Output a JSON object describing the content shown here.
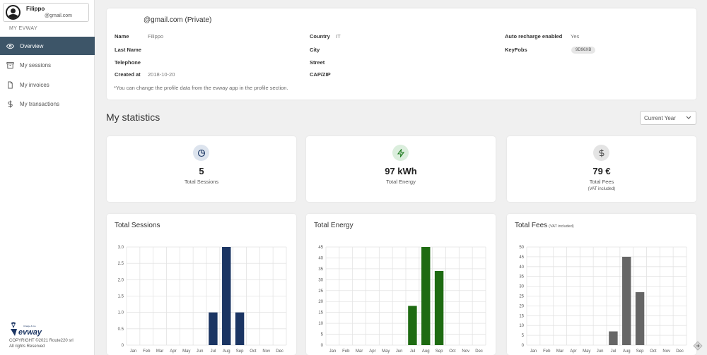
{
  "sidebar": {
    "user_name": "Filippo",
    "user_email": "@gmail.com",
    "section_label": "MY EVWAY",
    "items": [
      {
        "label": "Overview",
        "icon": "eye-icon"
      },
      {
        "label": "My sessions",
        "icon": "archive-icon"
      },
      {
        "label": "My invoices",
        "icon": "document-icon"
      },
      {
        "label": "My transactions",
        "icon": "dollar-icon"
      }
    ],
    "logo_text": "evway",
    "logo_tagline": "Charge & Go",
    "copyright_line1": "COPYRIGHT ©2021 Route220 srl",
    "copyright_line2": "All rights Reserved"
  },
  "profile": {
    "title": "@gmail.com (Private)",
    "fields_left": [
      {
        "label": "Name",
        "value": "Filippo"
      },
      {
        "label": "Last Name",
        "value": ""
      },
      {
        "label": "Telephone",
        "value": ""
      },
      {
        "label": "Created at",
        "value": "2018-10-20"
      }
    ],
    "fields_mid": [
      {
        "label": "Country",
        "value": "IT"
      },
      {
        "label": "City",
        "value": ""
      },
      {
        "label": "Street",
        "value": ""
      },
      {
        "label": "CAP/ZIP",
        "value": ""
      }
    ],
    "fields_right": [
      {
        "label": "Auto recharge enabled",
        "value": "Yes"
      },
      {
        "label": "KeyFobs",
        "value": "9D96XB"
      }
    ],
    "note": "*You can change the profile data from the evway app in the profile section."
  },
  "stats": {
    "title": "My statistics",
    "period_select": "Current Year",
    "cards": [
      {
        "value": "5",
        "label": "Total Sessions",
        "sub": "",
        "icon": "pie-chart-icon",
        "icon_bg": "#dde4ee",
        "icon_color": "#1f3a66"
      },
      {
        "value": "97 kWh",
        "label": "Total Energy",
        "sub": "",
        "icon": "lightning-icon",
        "icon_bg": "#dbeedd",
        "icon_color": "#1e7a1e"
      },
      {
        "value": "79 €",
        "label": "Total Fees",
        "sub": "(VAT included)",
        "icon": "dollar-icon",
        "icon_bg": "#e4e4e4",
        "icon_color": "#555555"
      }
    ]
  },
  "chart_data": [
    {
      "type": "bar",
      "title": "Total Sessions",
      "subtitle": "",
      "categories": [
        "Jan",
        "Feb",
        "Mar",
        "Apr",
        "May",
        "Jun",
        "Jul",
        "Aug",
        "Sep",
        "Oct",
        "Nov",
        "Dec"
      ],
      "values": [
        0,
        0,
        0,
        0,
        0,
        0,
        1,
        3,
        1,
        0,
        0,
        0
      ],
      "ylim": [
        0,
        3
      ],
      "yticks": [
        "0",
        "0.5",
        "1.0",
        "1.5",
        "2.0",
        "2.5",
        "3.0"
      ],
      "color": "#1b3563",
      "grid": true
    },
    {
      "type": "bar",
      "title": "Total Energy",
      "subtitle": "",
      "categories": [
        "Jan",
        "Feb",
        "Mar",
        "Apr",
        "May",
        "Jun",
        "Jul",
        "Aug",
        "Sep",
        "Oct",
        "Nov",
        "Dec"
      ],
      "values": [
        0,
        0,
        0,
        0,
        0,
        0,
        18,
        45,
        34,
        0,
        0,
        0
      ],
      "ylim": [
        0,
        45
      ],
      "yticks": [
        "0",
        "5",
        "10",
        "15",
        "20",
        "25",
        "30",
        "35",
        "40",
        "45"
      ],
      "color": "#1e6b12",
      "grid": true
    },
    {
      "type": "bar",
      "title": "Total Fees",
      "subtitle": "(VAT included)",
      "categories": [
        "Jan",
        "Feb",
        "Mar",
        "Apr",
        "May",
        "Jun",
        "Jul",
        "Aug",
        "Sep",
        "Oct",
        "Nov",
        "Dec"
      ],
      "values": [
        0,
        0,
        0,
        0,
        0,
        0,
        7,
        45,
        27,
        0,
        0,
        0
      ],
      "ylim": [
        0,
        50
      ],
      "yticks": [
        "0",
        "5",
        "10",
        "15",
        "20",
        "25",
        "30",
        "35",
        "40",
        "45",
        "50"
      ],
      "color": "#666666",
      "grid": true
    }
  ]
}
